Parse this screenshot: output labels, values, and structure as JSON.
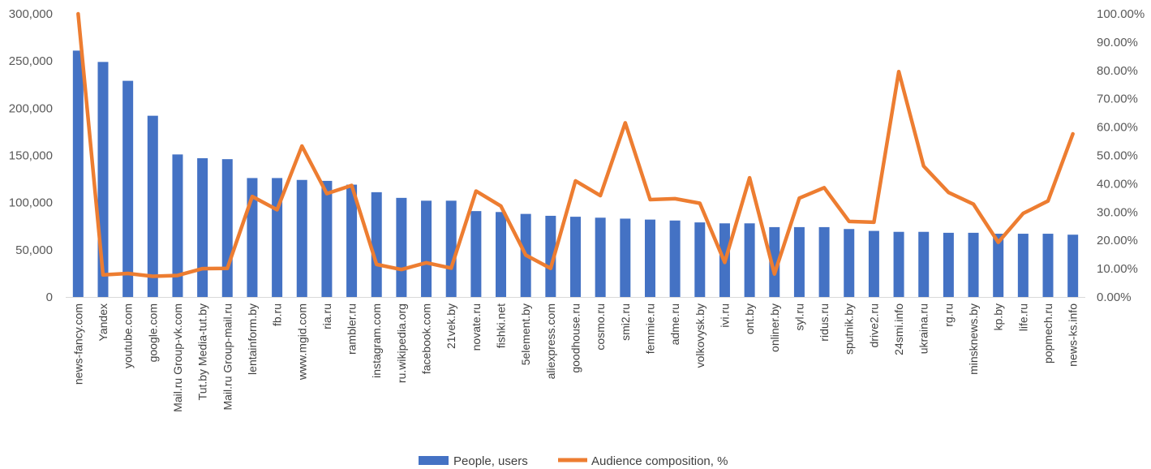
{
  "chart_data": {
    "type": "bar",
    "categories": [
      "news-fancy.com",
      "Yandex",
      "youtube.com",
      "google.com",
      "Mail.ru Group-vk.com",
      "Tut.by Media-tut.by",
      "Mail.ru Group-mail.ru",
      "lentainform.by",
      "fb.ru",
      "www.mgid.com",
      "ria.ru",
      "rambler.ru",
      "instagram.com",
      "ru.wikipedia.org",
      "facebook.com",
      "21vek.by",
      "novate.ru",
      "fishki.net",
      "5element.by",
      "aliexpress.com",
      "goodhouse.ru",
      "cosmo.ru",
      "smi2.ru",
      "femmie.ru",
      "adme.ru",
      "volkovysk.by",
      "ivi.ru",
      "ont.by",
      "onliner.by",
      "syl.ru",
      "ridus.ru",
      "sputnik.by",
      "drive2.ru",
      "24smi.info",
      "ukraina.ru",
      "rg.ru",
      "minsknews.by",
      "kp.by",
      "life.ru",
      "popmech.ru",
      "news-ks.info"
    ],
    "series": [
      {
        "name": "People, users",
        "type": "bar",
        "axis": "left",
        "color": "#4472C4",
        "values": [
          261000,
          249000,
          229000,
          192000,
          151000,
          147000,
          146000,
          126000,
          126000,
          124000,
          123000,
          119000,
          111000,
          105000,
          102000,
          102000,
          91000,
          90000,
          88000,
          86000,
          85000,
          84000,
          83000,
          82000,
          81000,
          79000,
          78000,
          78000,
          74000,
          74000,
          74000,
          72000,
          70000,
          69000,
          69000,
          68000,
          68000,
          67000,
          67000,
          67000,
          66000
        ]
      },
      {
        "name": "Audience composition, %",
        "type": "line",
        "axis": "right",
        "color": "#ED7D31",
        "values": [
          100.0,
          7.8,
          8.3,
          7.3,
          7.6,
          10.0,
          10.1,
          35.5,
          30.8,
          53.3,
          36.5,
          39.4,
          11.5,
          9.7,
          12.1,
          10.2,
          37.4,
          32.1,
          14.8,
          10.1,
          41.0,
          35.8,
          61.5,
          34.4,
          34.7,
          33.1,
          12.2,
          42.1,
          8.1,
          34.9,
          38.6,
          26.7,
          26.4,
          79.6,
          46.2,
          36.9,
          32.8,
          19.3,
          29.5,
          33.9,
          57.6
        ]
      }
    ],
    "y_left": {
      "min": 0,
      "max": 300000,
      "step": 50000,
      "tick_labels": [
        "0",
        "50,000",
        "100,000",
        "150,000",
        "200,000",
        "250,000",
        "300,000"
      ]
    },
    "y_right": {
      "min": 0,
      "max": 100,
      "step": 10,
      "tick_labels": [
        "0.00%",
        "10.00%",
        "20.00%",
        "30.00%",
        "40.00%",
        "50.00%",
        "60.00%",
        "70.00%",
        "80.00%",
        "90.00%",
        "100.00%"
      ]
    },
    "grid": false,
    "legend_position": "bottom"
  },
  "legend": {
    "bar_label": "People, users",
    "line_label": "Audience composition, %"
  }
}
